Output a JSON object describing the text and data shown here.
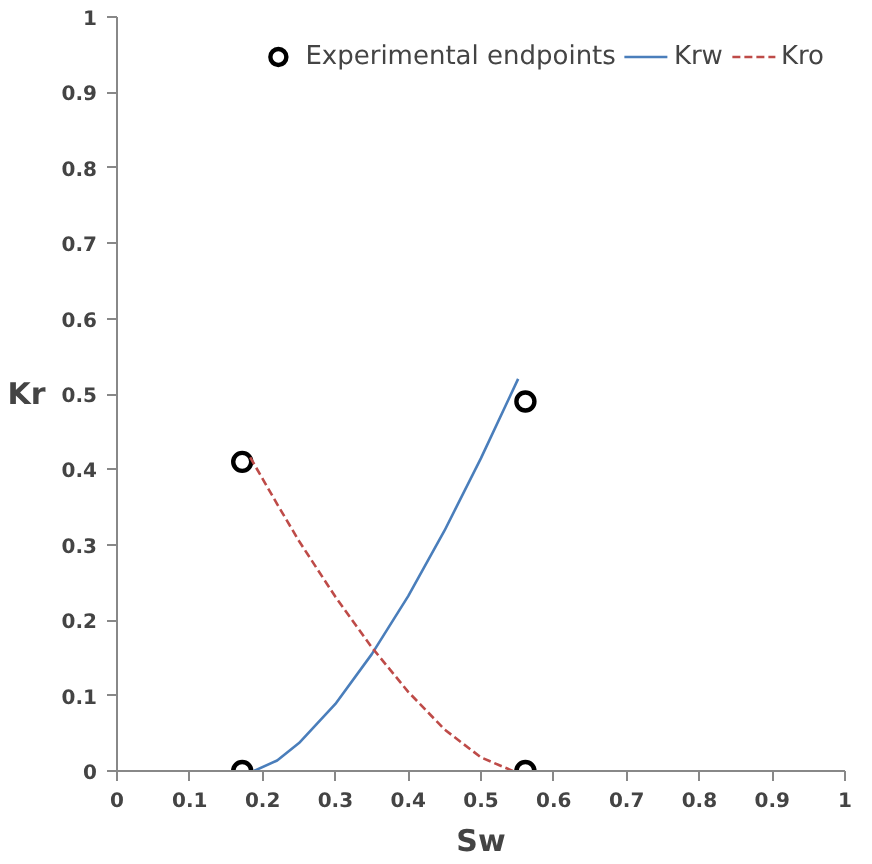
{
  "chart_data": {
    "type": "line",
    "xlabel": "Sw",
    "ylabel": "Kr",
    "xlim": [
      0,
      1
    ],
    "ylim": [
      0,
      1
    ],
    "xticks": [
      0,
      0.1,
      0.2,
      0.3,
      0.4,
      0.5,
      0.6,
      0.7,
      0.8,
      0.9,
      1
    ],
    "yticks": [
      0,
      0.1,
      0.2,
      0.3,
      0.4,
      0.5,
      0.6,
      0.7,
      0.8,
      0.9,
      1
    ],
    "grid": false,
    "legend": "top right",
    "series": [
      {
        "name": "Experimental endpoints",
        "type": "scatter",
        "marker": "circle",
        "color": "#000000",
        "x": [
          0.172,
          0.172,
          0.561,
          0.561
        ],
        "values": [
          0,
          0.41,
          0.49,
          0
        ]
      },
      {
        "name": "Krw",
        "line_style": "solid",
        "color": "#4a7ebb",
        "x": [
          0.188,
          0.22,
          0.25,
          0.3,
          0.35,
          0.4,
          0.45,
          0.5,
          0.551
        ],
        "values": [
          0,
          0.014,
          0.037,
          0.089,
          0.155,
          0.232,
          0.319,
          0.415,
          0.52
        ]
      },
      {
        "name": "Kro",
        "line_style": "dashed",
        "color": "#be4b48",
        "x": [
          0.183,
          0.22,
          0.25,
          0.3,
          0.35,
          0.4,
          0.45,
          0.5,
          0.544
        ],
        "values": [
          0.416,
          0.354,
          0.305,
          0.231,
          0.164,
          0.105,
          0.055,
          0.018,
          0
        ]
      }
    ]
  }
}
